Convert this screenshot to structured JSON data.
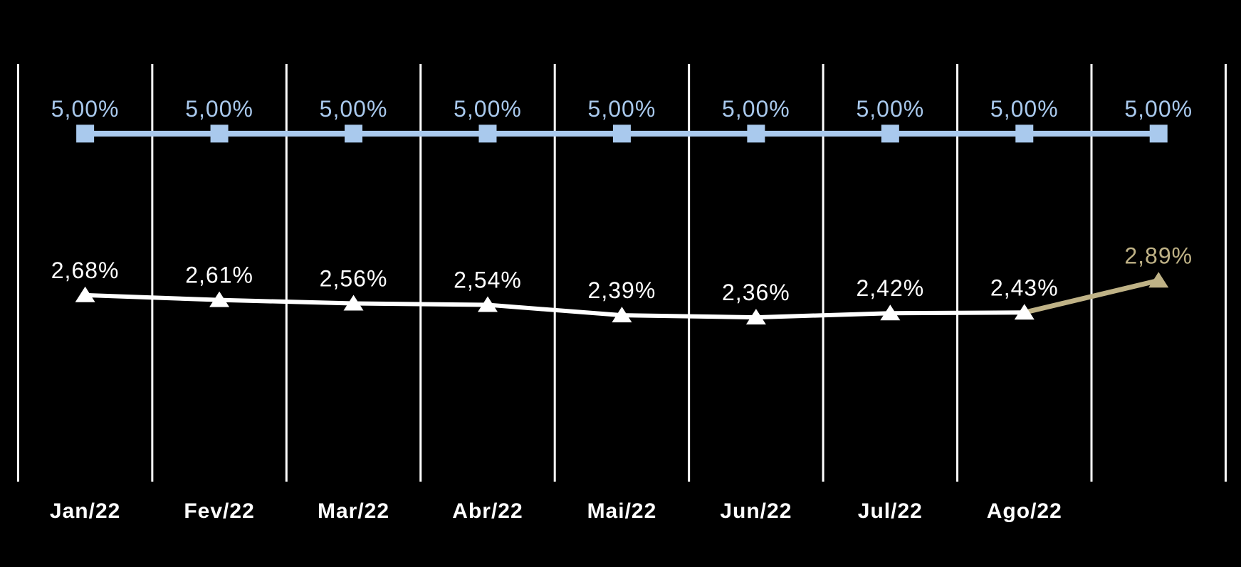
{
  "chart_data": {
    "type": "line",
    "title": "",
    "categories": [
      "Jan/22",
      "Fev/22",
      "Mar/22",
      "Abr/22",
      "Mai/22",
      "Jun/22",
      "Jul/22",
      "Ago/22",
      ""
    ],
    "ylim": [
      0,
      6
    ],
    "grid": {
      "vertical": true,
      "horizontal": false,
      "color": "#FFFFFF"
    },
    "background": "#000000",
    "legend": "none",
    "series": [
      {
        "name": "target-line",
        "marker": "square",
        "color": "#A9C9ED",
        "values": [
          5.0,
          5.0,
          5.0,
          5.0,
          5.0,
          5.0,
          5.0,
          5.0,
          5.0
        ],
        "labels": [
          "5,00%",
          "5,00%",
          "5,00%",
          "5,00%",
          "5,00%",
          "5,00%",
          "5,00%",
          "5,00%",
          "5,00%"
        ]
      },
      {
        "name": "monthly-rate-line",
        "marker": "triangle",
        "color": "#FFFFFF",
        "highlight_color": "#BFB286",
        "highlight_last_point": true,
        "values": [
          2.68,
          2.61,
          2.56,
          2.54,
          2.39,
          2.36,
          2.42,
          2.43,
          2.89
        ],
        "labels": [
          "2,68%",
          "2,61%",
          "2,56%",
          "2,54%",
          "2,39%",
          "2,36%",
          "2,42%",
          "2,43%",
          "2,89%"
        ]
      }
    ]
  }
}
